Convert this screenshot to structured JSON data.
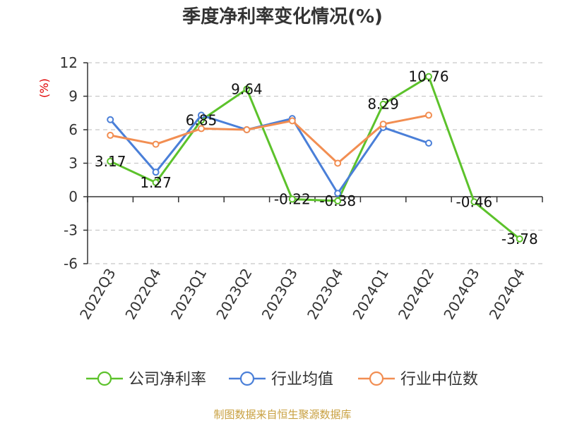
{
  "source_note": "制图数据来自恒生聚源数据库",
  "chart_data": {
    "type": "line",
    "title": "季度净利率变化情况(%)",
    "ylabel": "(%)",
    "xlabel": "",
    "ylim": [
      -6,
      12
    ],
    "yticks": [
      12,
      9,
      6,
      3,
      0,
      -3,
      -6
    ],
    "grid": true,
    "legend_position": "bottom",
    "categories": [
      "2022Q3",
      "2022Q4",
      "2023Q1",
      "2023Q2",
      "2023Q3",
      "2023Q4",
      "2024Q1",
      "2024Q2",
      "2024Q3",
      "2024Q4"
    ],
    "series": [
      {
        "name": "公司净利率",
        "color": "#5cc22b",
        "values": [
          3.17,
          1.27,
          6.85,
          9.64,
          -0.22,
          -0.38,
          8.29,
          10.76,
          -0.46,
          -3.78
        ],
        "labels": [
          "3.17",
          "1.27",
          "6.85",
          "9.64",
          "-0.22",
          "-0.38",
          "8.29",
          "10.76",
          "-0.46",
          "-3.78"
        ]
      },
      {
        "name": "行业均值",
        "color": "#4a7fd8",
        "values": [
          6.9,
          2.2,
          7.3,
          6.0,
          7.0,
          0.3,
          6.2,
          4.8,
          null,
          null
        ]
      },
      {
        "name": "行业中位数",
        "color": "#f28e52",
        "values": [
          5.5,
          4.7,
          6.1,
          6.0,
          6.8,
          3.0,
          6.5,
          7.3,
          null,
          null
        ]
      }
    ]
  }
}
